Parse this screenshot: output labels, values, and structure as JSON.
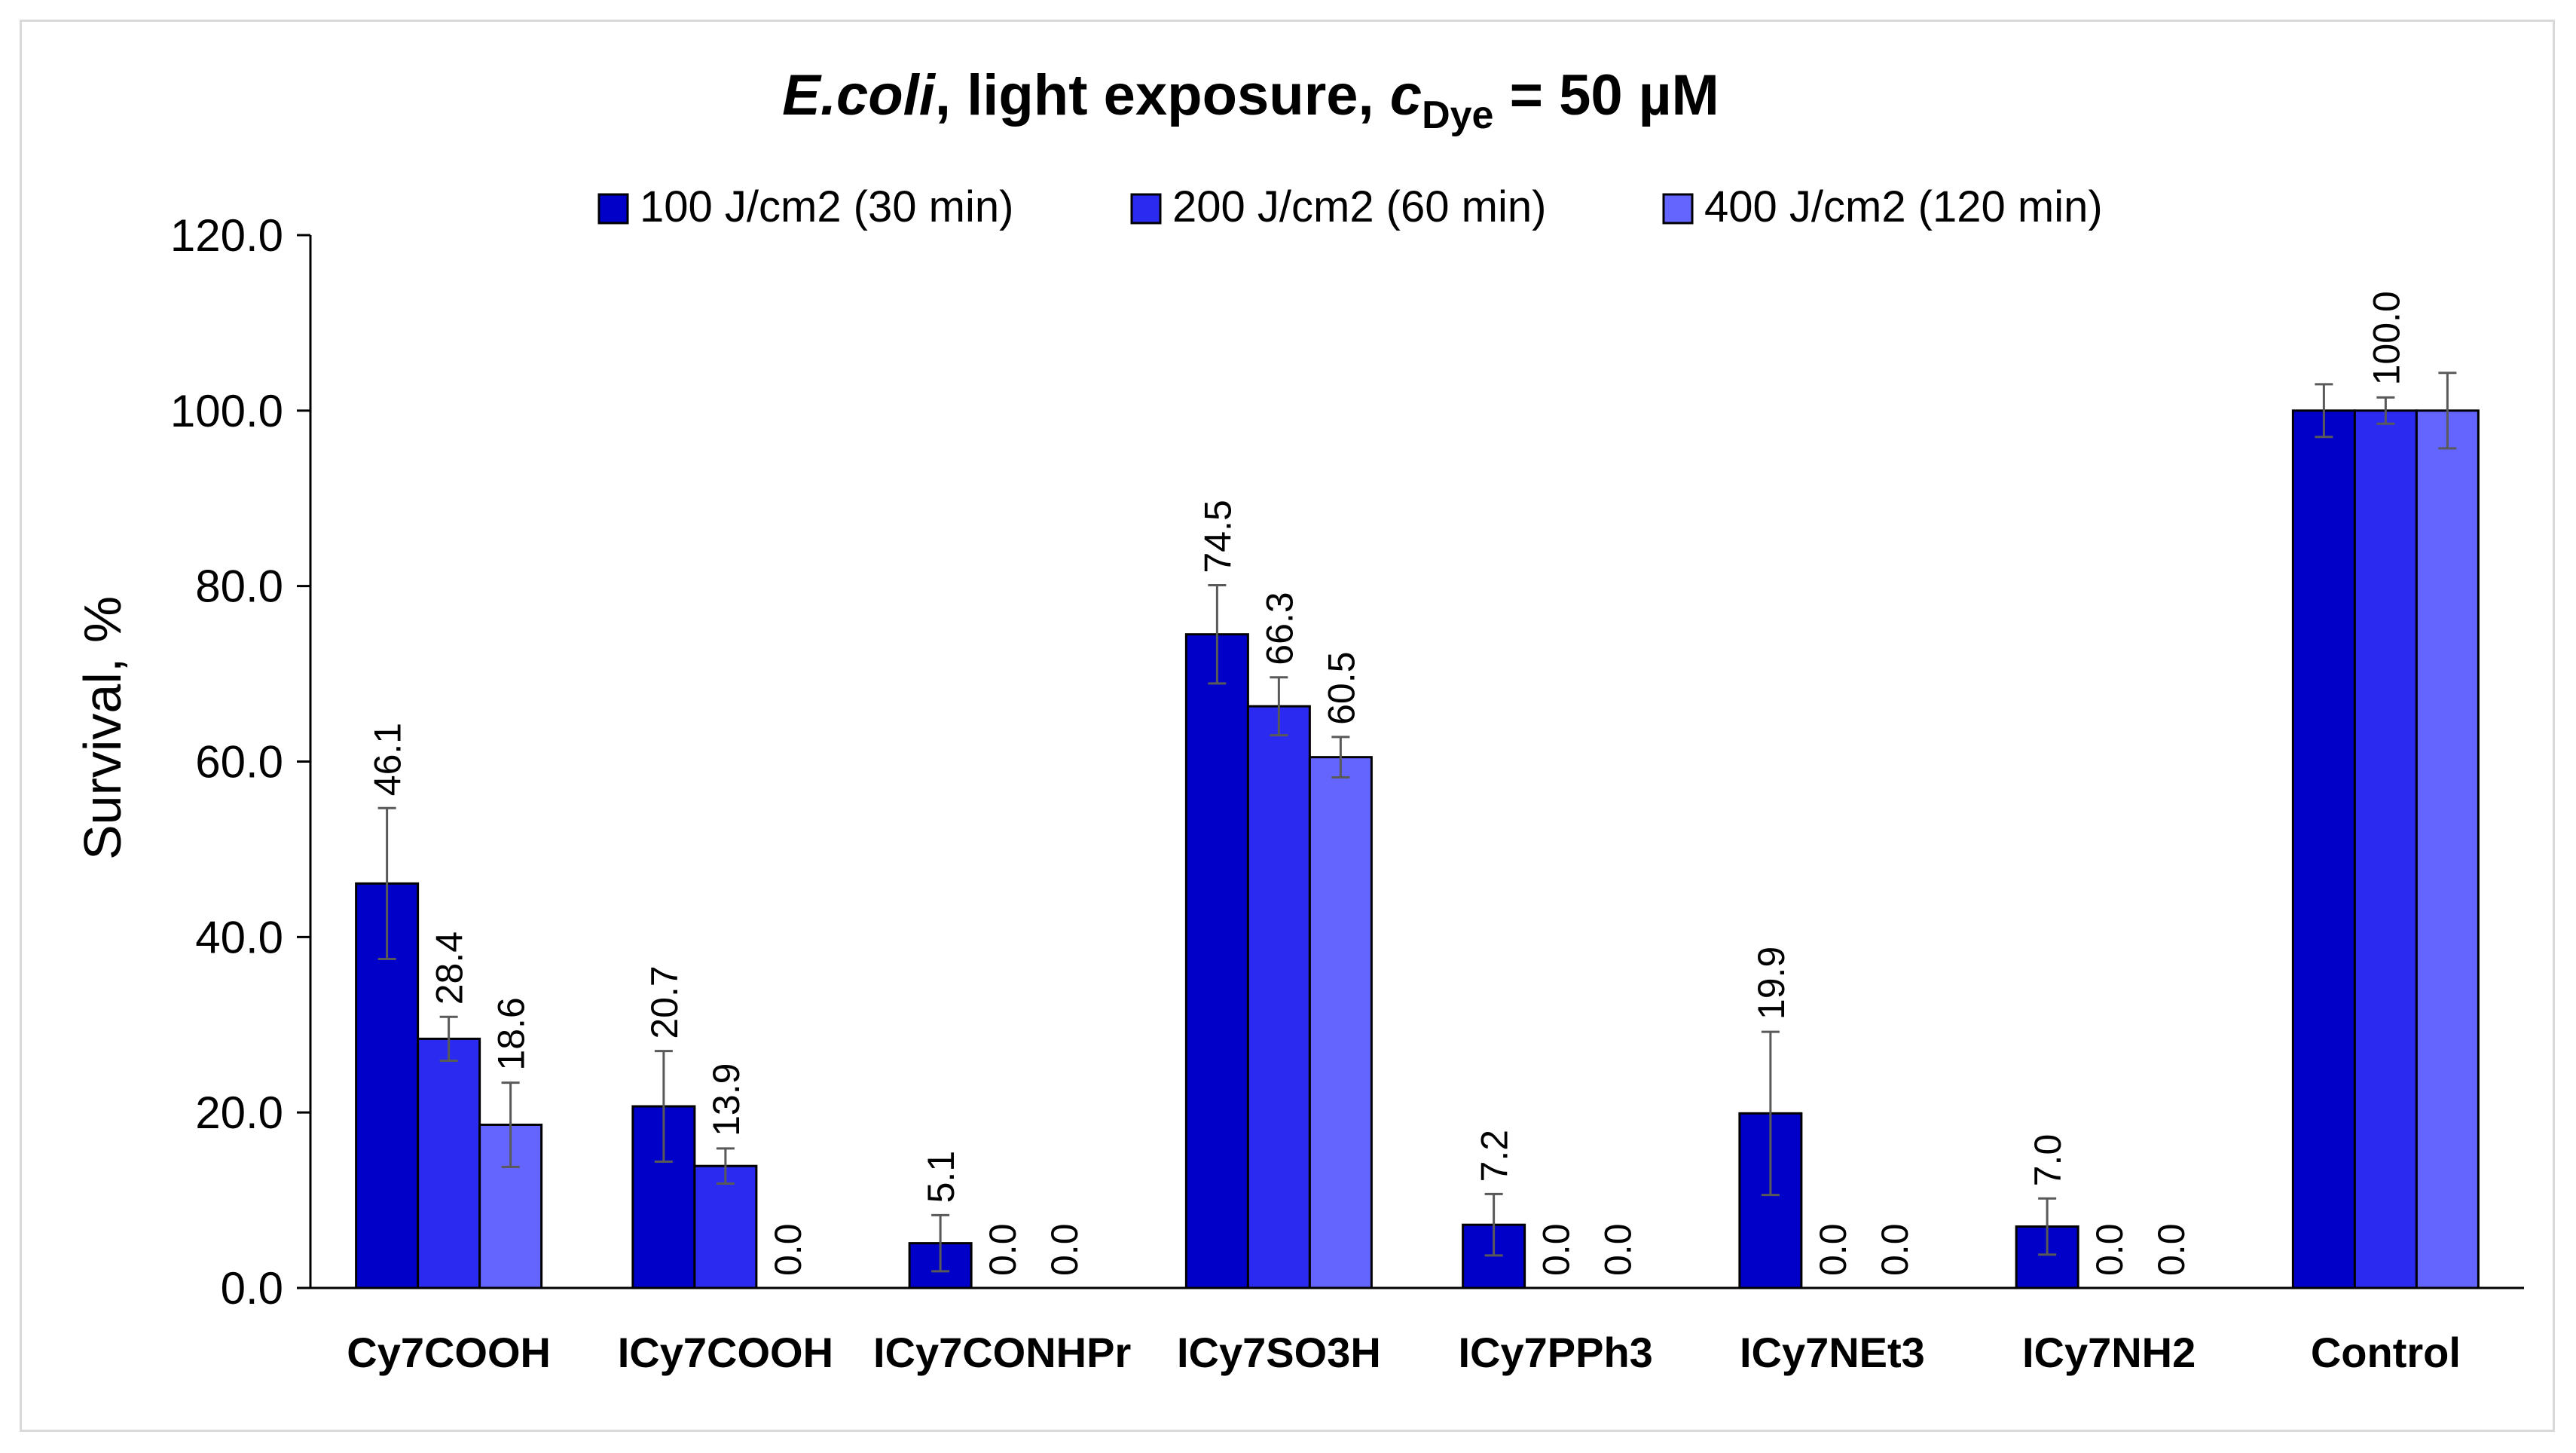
{
  "chart_data": {
    "type": "bar",
    "title": {
      "organism": "E.coli",
      "rest": ", light exposure, ",
      "c_symbol": "c",
      "c_subscript": "Dye",
      "equals_value": " = 50 µM"
    },
    "xlabel": "",
    "ylabel": "Survival, %",
    "ylim": [
      0,
      120
    ],
    "yticks": [
      "0.0",
      "20.0",
      "40.0",
      "60.0",
      "80.0",
      "100.0",
      "120.0"
    ],
    "categories": [
      "Cy7COOH",
      "ICy7COOH",
      "ICy7CONHPr",
      "ICy7SO3H",
      "ICy7PPh3",
      "ICy7NEt3",
      "ICy7NH2",
      "Control"
    ],
    "series": [
      {
        "name": "100 J/cm2 (30 min)",
        "color": "#0000c8",
        "values": [
          46.1,
          20.7,
          5.1,
          74.5,
          7.2,
          19.9,
          7.0,
          100.0
        ],
        "errors": [
          8.6,
          6.3,
          3.2,
          5.6,
          3.5,
          9.3,
          3.2,
          3.0
        ],
        "labels": [
          "46.1",
          "20.7",
          "5.1",
          "74.5",
          "7.2",
          "19.9",
          "7.0",
          ""
        ]
      },
      {
        "name": "200 J/cm2 (60 min)",
        "color": "#2a2af0",
        "values": [
          28.4,
          13.9,
          0.0,
          66.3,
          0.0,
          0.0,
          0.0,
          100.0
        ],
        "errors": [
          2.5,
          2.0,
          0.0,
          3.3,
          0.0,
          0.0,
          0.0,
          1.5
        ],
        "labels": [
          "28.4",
          "13.9",
          "0.0",
          "66.3",
          "0.0",
          "0.0",
          "0.0",
          "100.0"
        ]
      },
      {
        "name": "400 J/cm2 (120 min)",
        "color": "#6464ff",
        "values": [
          18.6,
          0.0,
          0.0,
          60.5,
          0.0,
          0.0,
          0.0,
          100.0
        ],
        "errors": [
          4.8,
          0.0,
          0.0,
          2.3,
          0.0,
          0.0,
          0.0,
          4.3
        ],
        "labels": [
          "18.6",
          "0.0",
          "0.0",
          "60.5",
          "0.0",
          "0.0",
          "0.0",
          ""
        ]
      }
    ],
    "legend_position": "top-center",
    "grid": false
  }
}
